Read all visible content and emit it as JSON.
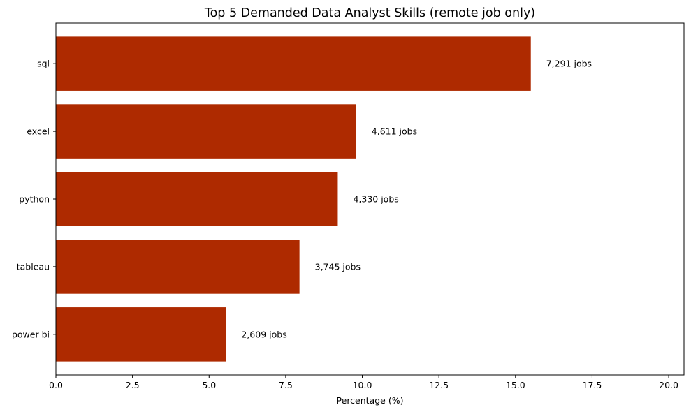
{
  "chart_data": {
    "type": "bar",
    "orientation": "horizontal",
    "title": "Top 5 Demanded Data Analyst Skills (remote job only)",
    "xlabel": "Percentage (%)",
    "ylabel": "",
    "xlim": [
      0,
      20.5
    ],
    "xticks": [
      0,
      2.5,
      5,
      7.5,
      10,
      12.5,
      15,
      17.5,
      20
    ],
    "xtick_labels": [
      "0.0",
      "2.5",
      "5.0",
      "7.5",
      "10.0",
      "12.5",
      "15.0",
      "17.5",
      "20.0"
    ],
    "categories": [
      "sql",
      "excel",
      "python",
      "tableau",
      "power bi"
    ],
    "values": [
      15.5,
      9.8,
      9.2,
      7.95,
      5.55
    ],
    "data_labels": [
      "7,291 jobs",
      "4,611 jobs",
      "4,330 jobs",
      "3,745 jobs",
      "2,609 jobs"
    ],
    "bar_color": "#ae2a00",
    "grid": false,
    "legend": "none"
  }
}
